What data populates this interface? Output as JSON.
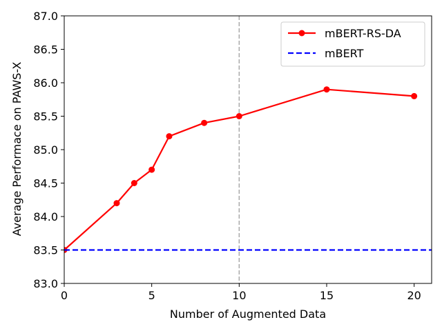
{
  "chart_data": {
    "type": "line",
    "title": "",
    "xlabel": "Number of Augmented Data",
    "ylabel": "Average Performace on PAWS-X",
    "xlim": [
      0,
      21
    ],
    "ylim": [
      83.0,
      87.0
    ],
    "xticks": [
      0,
      5,
      10,
      15,
      20
    ],
    "xtick_labels": [
      "0",
      "5",
      "10",
      "15",
      "20"
    ],
    "yticks": [
      83.0,
      83.5,
      84.0,
      84.5,
      85.0,
      85.5,
      86.0,
      86.5,
      87.0
    ],
    "ytick_labels": [
      "83.0",
      "83.5",
      "84.0",
      "84.5",
      "85.0",
      "85.5",
      "86.0",
      "86.5",
      "87.0"
    ],
    "grid": false,
    "legend_position": "top-right",
    "vertical_reference_line": {
      "x": 10,
      "style": "dashed",
      "color": "#a9a9a9"
    },
    "series": [
      {
        "name": "mBERT-RS-DA",
        "color": "#ff0000",
        "style": "solid",
        "marker": "circle",
        "x": [
          0,
          3,
          4,
          5,
          6,
          8,
          10,
          15,
          20
        ],
        "y": [
          83.5,
          84.2,
          84.5,
          84.7,
          85.2,
          85.4,
          85.5,
          85.9,
          85.8
        ]
      },
      {
        "name": "mBERT",
        "color": "#0000ff",
        "style": "dashed",
        "marker": "none",
        "x": [
          0,
          21
        ],
        "y": [
          83.5,
          83.5
        ]
      }
    ]
  }
}
